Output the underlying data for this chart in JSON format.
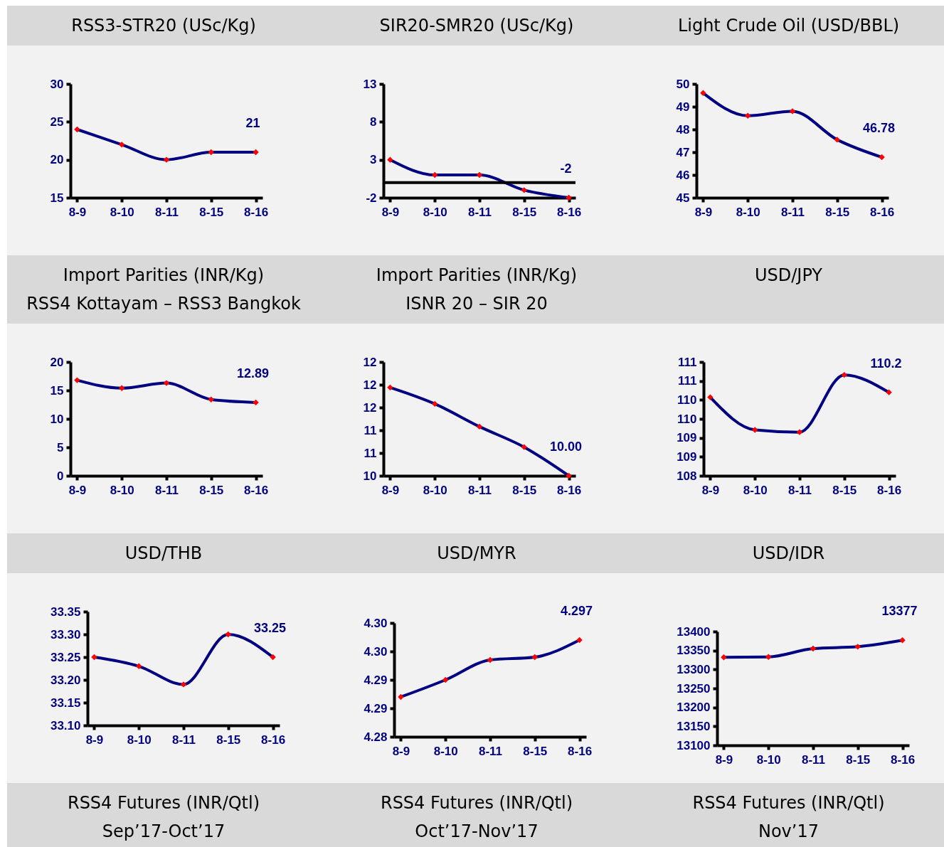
{
  "chart_data": [
    {
      "type": "line",
      "title": "RSS3-STR20 (USc/Kg)",
      "categories": [
        "8-9",
        "8-10",
        "8-11",
        "8-15",
        "8-16"
      ],
      "series": [
        {
          "color": "#000080",
          "values": [
            24,
            22,
            20,
            21,
            21
          ],
          "value_labels": [
            null,
            null,
            null,
            null,
            "21"
          ]
        }
      ],
      "ylim": [
        15,
        30
      ],
      "yticks": [
        15,
        20,
        25,
        30
      ],
      "marker": "diamond",
      "grid": false
    },
    {
      "type": "line",
      "title": "SIR20-SMR20 (USc/Kg)",
      "categories": [
        "8-9",
        "8-10",
        "8-11",
        "8-15",
        "8-16"
      ],
      "series": [
        {
          "color": "#000080",
          "values": [
            3,
            1,
            1,
            -1,
            -2
          ],
          "value_labels": [
            null,
            null,
            null,
            null,
            "-2"
          ]
        }
      ],
      "ylim": [
        -2,
        13
      ],
      "yticks": [
        -2,
        3,
        8,
        13
      ],
      "ref_lines": [
        {
          "axis": "y",
          "value": 0,
          "color": "#000000"
        }
      ],
      "marker": "diamond",
      "grid": false
    },
    {
      "type": "line",
      "title": "Light Crude Oil (USD/BBL)",
      "categories": [
        "8-9",
        "8-10",
        "8-11",
        "8-15",
        "8-16"
      ],
      "series": [
        {
          "color": "#000080",
          "values": [
            49.6,
            48.6,
            48.8,
            47.55,
            46.78
          ],
          "value_labels": [
            null,
            null,
            null,
            null,
            "46.78"
          ]
        }
      ],
      "ylim": [
        45,
        50
      ],
      "yticks": [
        45,
        46,
        47,
        48,
        49,
        50
      ],
      "marker": "diamond",
      "grid": false
    },
    {
      "type": "line",
      "title": "Import Parities (INR/Kg)",
      "subtitle": "RSS4 Kottayam – RSS3 Bangkok",
      "categories": [
        "8-9",
        "8-10",
        "8-11",
        "8-15",
        "8-16"
      ],
      "series": [
        {
          "color": "#000080",
          "values": [
            16.8,
            15.4,
            16.3,
            13.4,
            12.89
          ],
          "value_labels": [
            null,
            null,
            null,
            null,
            "12.89"
          ]
        }
      ],
      "ylim": [
        0,
        20
      ],
      "yticks": [
        0,
        5,
        10,
        15,
        20
      ],
      "marker": "diamond",
      "grid": false
    },
    {
      "type": "line",
      "title": "Import Parities (INR/Kg)",
      "subtitle": "ISNR 20 – SIR 20",
      "categories": [
        "8-9",
        "8-10",
        "8-11",
        "8-15",
        "8-16"
      ],
      "series": [
        {
          "color": "#000080",
          "values": [
            11.94,
            11.58,
            11.08,
            10.63,
            10.0
          ],
          "value_labels": [
            null,
            null,
            null,
            null,
            "10.00"
          ]
        }
      ],
      "ylim": [
        10,
        12.5
      ],
      "yticks": [
        10,
        {
          "value": 10.5,
          "label": "11"
        },
        11,
        {
          "value": 11.5,
          "label": "12"
        },
        12,
        {
          "value": 12.5,
          "label": "12"
        }
      ],
      "marker": "diamond",
      "grid": false
    },
    {
      "type": "line",
      "title": "USD/JPY",
      "categories": [
        "8-9",
        "8-10",
        "8-11",
        "8-15",
        "8-16"
      ],
      "series": [
        {
          "color": "#000080",
          "values": [
            110.07,
            109.21,
            109.15,
            110.66,
            110.2
          ],
          "value_labels": [
            null,
            null,
            null,
            null,
            "110.2"
          ]
        }
      ],
      "ylim": [
        108,
        111
      ],
      "yticks": [
        108,
        {
          "value": 108.5,
          "label": "109"
        },
        109,
        {
          "value": 109.5,
          "label": "110"
        },
        110,
        {
          "value": 110.5,
          "label": "111"
        },
        111
      ],
      "marker": "diamond",
      "grid": false
    },
    {
      "type": "line",
      "title": "USD/THB",
      "categories": [
        "8-9",
        "8-10",
        "8-11",
        "8-15",
        "8-16"
      ],
      "series": [
        {
          "color": "#000080",
          "values": [
            33.25,
            33.23,
            33.19,
            33.3,
            33.25
          ],
          "value_labels": [
            null,
            null,
            null,
            null,
            "33.25"
          ]
        }
      ],
      "ylim": [
        33.1,
        33.35
      ],
      "yticks": [
        {
          "value": 33.1,
          "label": "33.10"
        },
        {
          "value": 33.15,
          "label": "33.15"
        },
        {
          "value": 33.2,
          "label": "33.20"
        },
        {
          "value": 33.25,
          "label": "33.25"
        },
        {
          "value": 33.3,
          "label": "33.30"
        },
        {
          "value": 33.35,
          "label": "33.35"
        }
      ],
      "marker": "diamond",
      "grid": false
    },
    {
      "type": "line",
      "title": "USD/MYR",
      "categories": [
        "8-9",
        "8-10",
        "8-11",
        "8-15",
        "8-16"
      ],
      "series": [
        {
          "color": "#000080",
          "values": [
            4.287,
            4.29,
            4.2935,
            4.294,
            4.297
          ],
          "value_labels": [
            null,
            null,
            null,
            null,
            "4.297"
          ]
        }
      ],
      "ylim": [
        4.28,
        4.3
      ],
      "yticks": [
        {
          "value": 4.28,
          "label": "4.28"
        },
        {
          "value": 4.285,
          "label": "4.29"
        },
        {
          "value": 4.29,
          "label": "4.29"
        },
        {
          "value": 4.295,
          "label": "4.30"
        },
        {
          "value": 4.3,
          "label": "4.30"
        }
      ],
      "marker": "diamond",
      "grid": false
    },
    {
      "type": "line",
      "title": "USD/IDR",
      "categories": [
        "8-9",
        "8-10",
        "8-11",
        "8-15",
        "8-16"
      ],
      "series": [
        {
          "color": "#000080",
          "values": [
            13332,
            13333,
            13355,
            13360,
            13377
          ],
          "value_labels": [
            null,
            null,
            null,
            null,
            "13377"
          ]
        }
      ],
      "ylim": [
        13100,
        13400
      ],
      "yticks": [
        13100,
        13150,
        13200,
        13250,
        13300,
        13350,
        13400
      ],
      "marker": "diamond",
      "grid": false
    },
    {
      "type": "other",
      "title": "RSS4 Futures (INR/Qtl)",
      "subtitle": "Sep’17-Oct’17"
    },
    {
      "type": "other",
      "title": "RSS4 Futures (INR/Qtl)",
      "subtitle": "Oct’17-Nov’17"
    },
    {
      "type": "other",
      "title": "RSS4 Futures (INR/Qtl)",
      "subtitle": "Nov’17"
    }
  ]
}
